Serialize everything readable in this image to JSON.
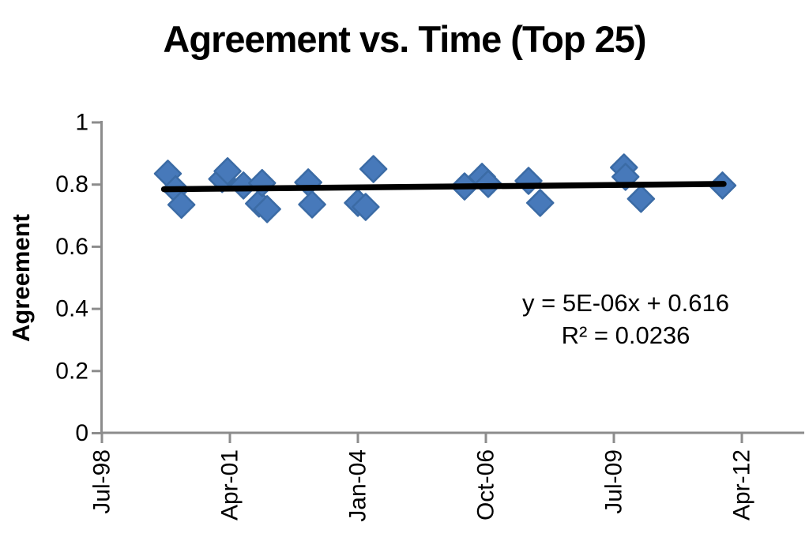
{
  "header": {
    "title": "Agreement vs. Time (Top 25)"
  },
  "annotation": {
    "equation": "y = 5E-06x + 0.616",
    "r_squared": "R² = 0.0236"
  },
  "chart_data": {
    "type": "scatter",
    "title": "Agreement vs. Time (Top 25)",
    "xlabel": "",
    "ylabel": "Agreement",
    "grid": false,
    "legend": false,
    "ylim": [
      0,
      1
    ],
    "y_axis": {
      "tick_values": [
        0,
        0.2,
        0.4,
        0.6,
        0.8,
        1
      ],
      "tick_labels": [
        "0",
        "0.2",
        "0.4",
        "0.6",
        "0.8",
        "1"
      ]
    },
    "x_axis": {
      "tick_labels": [
        "Jul-98",
        "Apr-01",
        "Jan-04",
        "Oct-06",
        "Jul-09",
        "Apr-12"
      ],
      "tick_months_since_first": [
        0,
        33,
        66,
        99,
        132,
        165
      ],
      "range_months": [
        0,
        165
      ]
    },
    "points": [
      {
        "date": "Dec-99",
        "month": 17,
        "value": 0.835
      },
      {
        "date": "Feb-00",
        "month": 19,
        "value": 0.785
      },
      {
        "date": "Mar-00",
        "month": 20.5,
        "value": 0.735
      },
      {
        "date": "Feb-01",
        "month": 31,
        "value": 0.818
      },
      {
        "date": "Mar-01",
        "month": 32.4,
        "value": 0.843
      },
      {
        "date": "Jul-01",
        "month": 36.5,
        "value": 0.797
      },
      {
        "date": "Nov-01",
        "month": 40.5,
        "value": 0.739
      },
      {
        "date": "Dec-01",
        "month": 41.3,
        "value": 0.805
      },
      {
        "date": "Jan-02",
        "month": 42.6,
        "value": 0.721
      },
      {
        "date": "Dec-02",
        "month": 53.2,
        "value": 0.807
      },
      {
        "date": "Jan-03",
        "month": 54.2,
        "value": 0.736
      },
      {
        "date": "Jan-04",
        "month": 66,
        "value": 0.741
      },
      {
        "date": "Mar-04",
        "month": 68,
        "value": 0.728
      },
      {
        "date": "May-04",
        "month": 70,
        "value": 0.85
      },
      {
        "date": "Apr-06",
        "month": 93.5,
        "value": 0.794
      },
      {
        "date": "Sep-06",
        "month": 98,
        "value": 0.825
      },
      {
        "date": "Oct-06",
        "month": 99.6,
        "value": 0.802
      },
      {
        "date": "Sep-07",
        "month": 110,
        "value": 0.812
      },
      {
        "date": "Dec-07",
        "month": 113,
        "value": 0.741
      },
      {
        "date": "Sep-09",
        "month": 134.6,
        "value": 0.855
      },
      {
        "date": "Oct-09",
        "month": 135,
        "value": 0.825
      },
      {
        "date": "Feb-10",
        "month": 139,
        "value": 0.754
      },
      {
        "date": "Nov-11",
        "month": 160,
        "value": 0.797
      }
    ],
    "trendline": {
      "equation": "y = 5E-06x + 0.616",
      "r2": 0.0236,
      "start": {
        "month": 16,
        "value": 0.785
      },
      "end": {
        "month": 160.3,
        "value": 0.802
      },
      "color": "#000000"
    },
    "marker": {
      "shape": "diamond",
      "fill": "#4779BA",
      "stroke": "#3B6BA5"
    },
    "colors": {
      "axis": "#8C8C8C",
      "text": "#000000"
    }
  }
}
